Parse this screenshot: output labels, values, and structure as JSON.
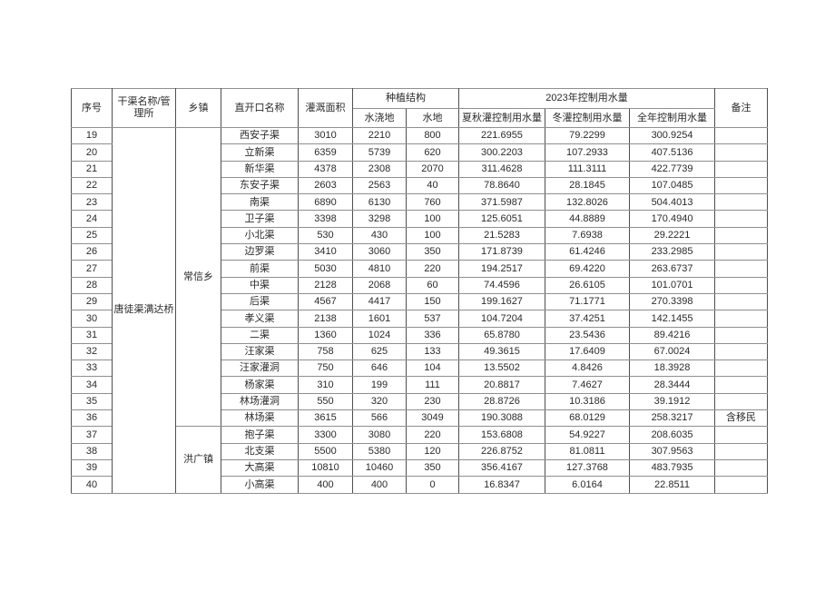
{
  "table": {
    "headers": {
      "no": "序号",
      "canal": "干渠名称/管理所",
      "township": "乡镇",
      "outlet": "直开口名称",
      "area": "灌溉面积",
      "planting": "种植结构",
      "irrigated_land": "水浇地",
      "water_land": "水地",
      "usage_2023": "2023年控制用水量",
      "summer_autumn": "夏秋灌控制用水量",
      "winter": "冬灌控制用水量",
      "annual": "全年控制用水量",
      "remark": "备注"
    },
    "canal_group": {
      "label": "唐徒渠满达桥",
      "start": 19,
      "rowspan": 22
    },
    "township_groups": [
      {
        "label": "常信乡",
        "start": 19,
        "rowspan": 18
      },
      {
        "label": "洪广镇",
        "start": 37,
        "rowspan": 4
      }
    ],
    "rows": [
      {
        "no": "19",
        "outlet": "西安子渠",
        "area": "3010",
        "irrigated": "2210",
        "water": "800",
        "summer": "221.6955",
        "winter": "79.2299",
        "annual": "300.9254",
        "remark": ""
      },
      {
        "no": "20",
        "outlet": "立新渠",
        "area": "6359",
        "irrigated": "5739",
        "water": "620",
        "summer": "300.2203",
        "winter": "107.2933",
        "annual": "407.5136",
        "remark": ""
      },
      {
        "no": "21",
        "outlet": "新华渠",
        "area": "4378",
        "irrigated": "2308",
        "water": "2070",
        "summer": "311.4628",
        "winter": "111.3111",
        "annual": "422.7739",
        "remark": ""
      },
      {
        "no": "22",
        "outlet": "东安子渠",
        "area": "2603",
        "irrigated": "2563",
        "water": "40",
        "summer": "78.8640",
        "winter": "28.1845",
        "annual": "107.0485",
        "remark": ""
      },
      {
        "no": "23",
        "outlet": "南渠",
        "area": "6890",
        "irrigated": "6130",
        "water": "760",
        "summer": "371.5987",
        "winter": "132.8026",
        "annual": "504.4013",
        "remark": ""
      },
      {
        "no": "24",
        "outlet": "卫子渠",
        "area": "3398",
        "irrigated": "3298",
        "water": "100",
        "summer": "125.6051",
        "winter": "44.8889",
        "annual": "170.4940",
        "remark": ""
      },
      {
        "no": "25",
        "outlet": "小北渠",
        "area": "530",
        "irrigated": "430",
        "water": "100",
        "summer": "21.5283",
        "winter": "7.6938",
        "annual": "29.2221",
        "remark": ""
      },
      {
        "no": "26",
        "outlet": "边罗渠",
        "area": "3410",
        "irrigated": "3060",
        "water": "350",
        "summer": "171.8739",
        "winter": "61.4246",
        "annual": "233.2985",
        "remark": ""
      },
      {
        "no": "27",
        "outlet": "前渠",
        "area": "5030",
        "irrigated": "4810",
        "water": "220",
        "summer": "194.2517",
        "winter": "69.4220",
        "annual": "263.6737",
        "remark": ""
      },
      {
        "no": "28",
        "outlet": "中渠",
        "area": "2128",
        "irrigated": "2068",
        "water": "60",
        "summer": "74.4596",
        "winter": "26.6105",
        "annual": "101.0701",
        "remark": ""
      },
      {
        "no": "29",
        "outlet": "后渠",
        "area": "4567",
        "irrigated": "4417",
        "water": "150",
        "summer": "199.1627",
        "winter": "71.1771",
        "annual": "270.3398",
        "remark": ""
      },
      {
        "no": "30",
        "outlet": "孝义渠",
        "area": "2138",
        "irrigated": "1601",
        "water": "537",
        "summer": "104.7204",
        "winter": "37.4251",
        "annual": "142.1455",
        "remark": ""
      },
      {
        "no": "31",
        "outlet": "二渠",
        "area": "1360",
        "irrigated": "1024",
        "water": "336",
        "summer": "65.8780",
        "winter": "23.5436",
        "annual": "89.4216",
        "remark": ""
      },
      {
        "no": "32",
        "outlet": "汪家渠",
        "area": "758",
        "irrigated": "625",
        "water": "133",
        "summer": "49.3615",
        "winter": "17.6409",
        "annual": "67.0024",
        "remark": ""
      },
      {
        "no": "33",
        "outlet": "汪家灌洞",
        "area": "750",
        "irrigated": "646",
        "water": "104",
        "summer": "13.5502",
        "winter": "4.8426",
        "annual": "18.3928",
        "remark": ""
      },
      {
        "no": "34",
        "outlet": "杨家渠",
        "area": "310",
        "irrigated": "199",
        "water": "111",
        "summer": "20.8817",
        "winter": "7.4627",
        "annual": "28.3444",
        "remark": ""
      },
      {
        "no": "35",
        "outlet": "林场灌洞",
        "area": "550",
        "irrigated": "320",
        "water": "230",
        "summer": "28.8726",
        "winter": "10.3186",
        "annual": "39.1912",
        "remark": ""
      },
      {
        "no": "36",
        "outlet": "林场渠",
        "area": "3615",
        "irrigated": "566",
        "water": "3049",
        "summer": "190.3088",
        "winter": "68.0129",
        "annual": "258.3217",
        "remark": "含移民"
      },
      {
        "no": "37",
        "outlet": "抱子渠",
        "area": "3300",
        "irrigated": "3080",
        "water": "220",
        "summer": "153.6808",
        "winter": "54.9227",
        "annual": "208.6035",
        "remark": ""
      },
      {
        "no": "38",
        "outlet": "北支渠",
        "area": "5500",
        "irrigated": "5380",
        "water": "120",
        "summer": "226.8752",
        "winter": "81.0811",
        "annual": "307.9563",
        "remark": ""
      },
      {
        "no": "39",
        "outlet": "大高渠",
        "area": "10810",
        "irrigated": "10460",
        "water": "350",
        "summer": "356.4167",
        "winter": "127.3768",
        "annual": "483.7935",
        "remark": ""
      },
      {
        "no": "40",
        "outlet": "小高渠",
        "area": "400",
        "irrigated": "400",
        "water": "0",
        "summer": "16.8347",
        "winter": "6.0164",
        "annual": "22.8511",
        "remark": ""
      }
    ]
  }
}
